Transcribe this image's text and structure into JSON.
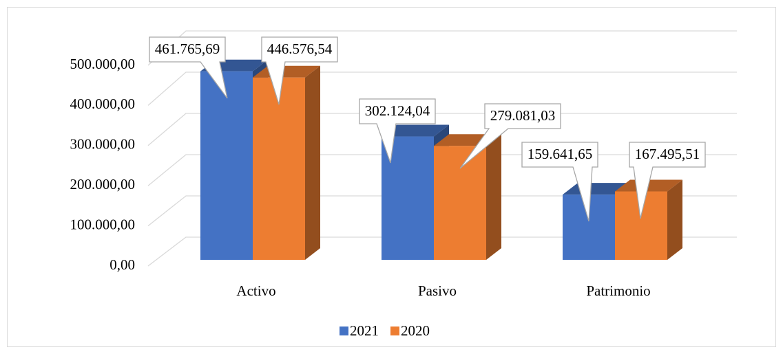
{
  "chart_data": {
    "type": "bar3d",
    "categories": [
      "Activo",
      "Pasivo",
      "Patrimonio"
    ],
    "series": [
      {
        "name": "2021",
        "color": "#4472c4",
        "values": [
          461765.69,
          302124.04,
          159641.65
        ],
        "value_labels": [
          "461.765,69",
          "302.124,04",
          "159.641,65"
        ]
      },
      {
        "name": "2020",
        "color": "#ed7d31",
        "values": [
          446576.54,
          279081.03,
          167495.51
        ],
        "value_labels": [
          "446.576,54",
          "279.081,03",
          "167.495,51"
        ]
      }
    ],
    "ylim": [
      0,
      500000
    ],
    "yticks": [
      {
        "value": 0,
        "label": "0,00"
      },
      {
        "value": 100000,
        "label": "100.000,00"
      },
      {
        "value": 200000,
        "label": "200.000,00"
      },
      {
        "value": 300000,
        "label": "300.000,00"
      },
      {
        "value": 400000,
        "label": "400.000,00"
      },
      {
        "value": 500000,
        "label": "500.000,00"
      }
    ],
    "grid": true,
    "legend": "bottom"
  }
}
